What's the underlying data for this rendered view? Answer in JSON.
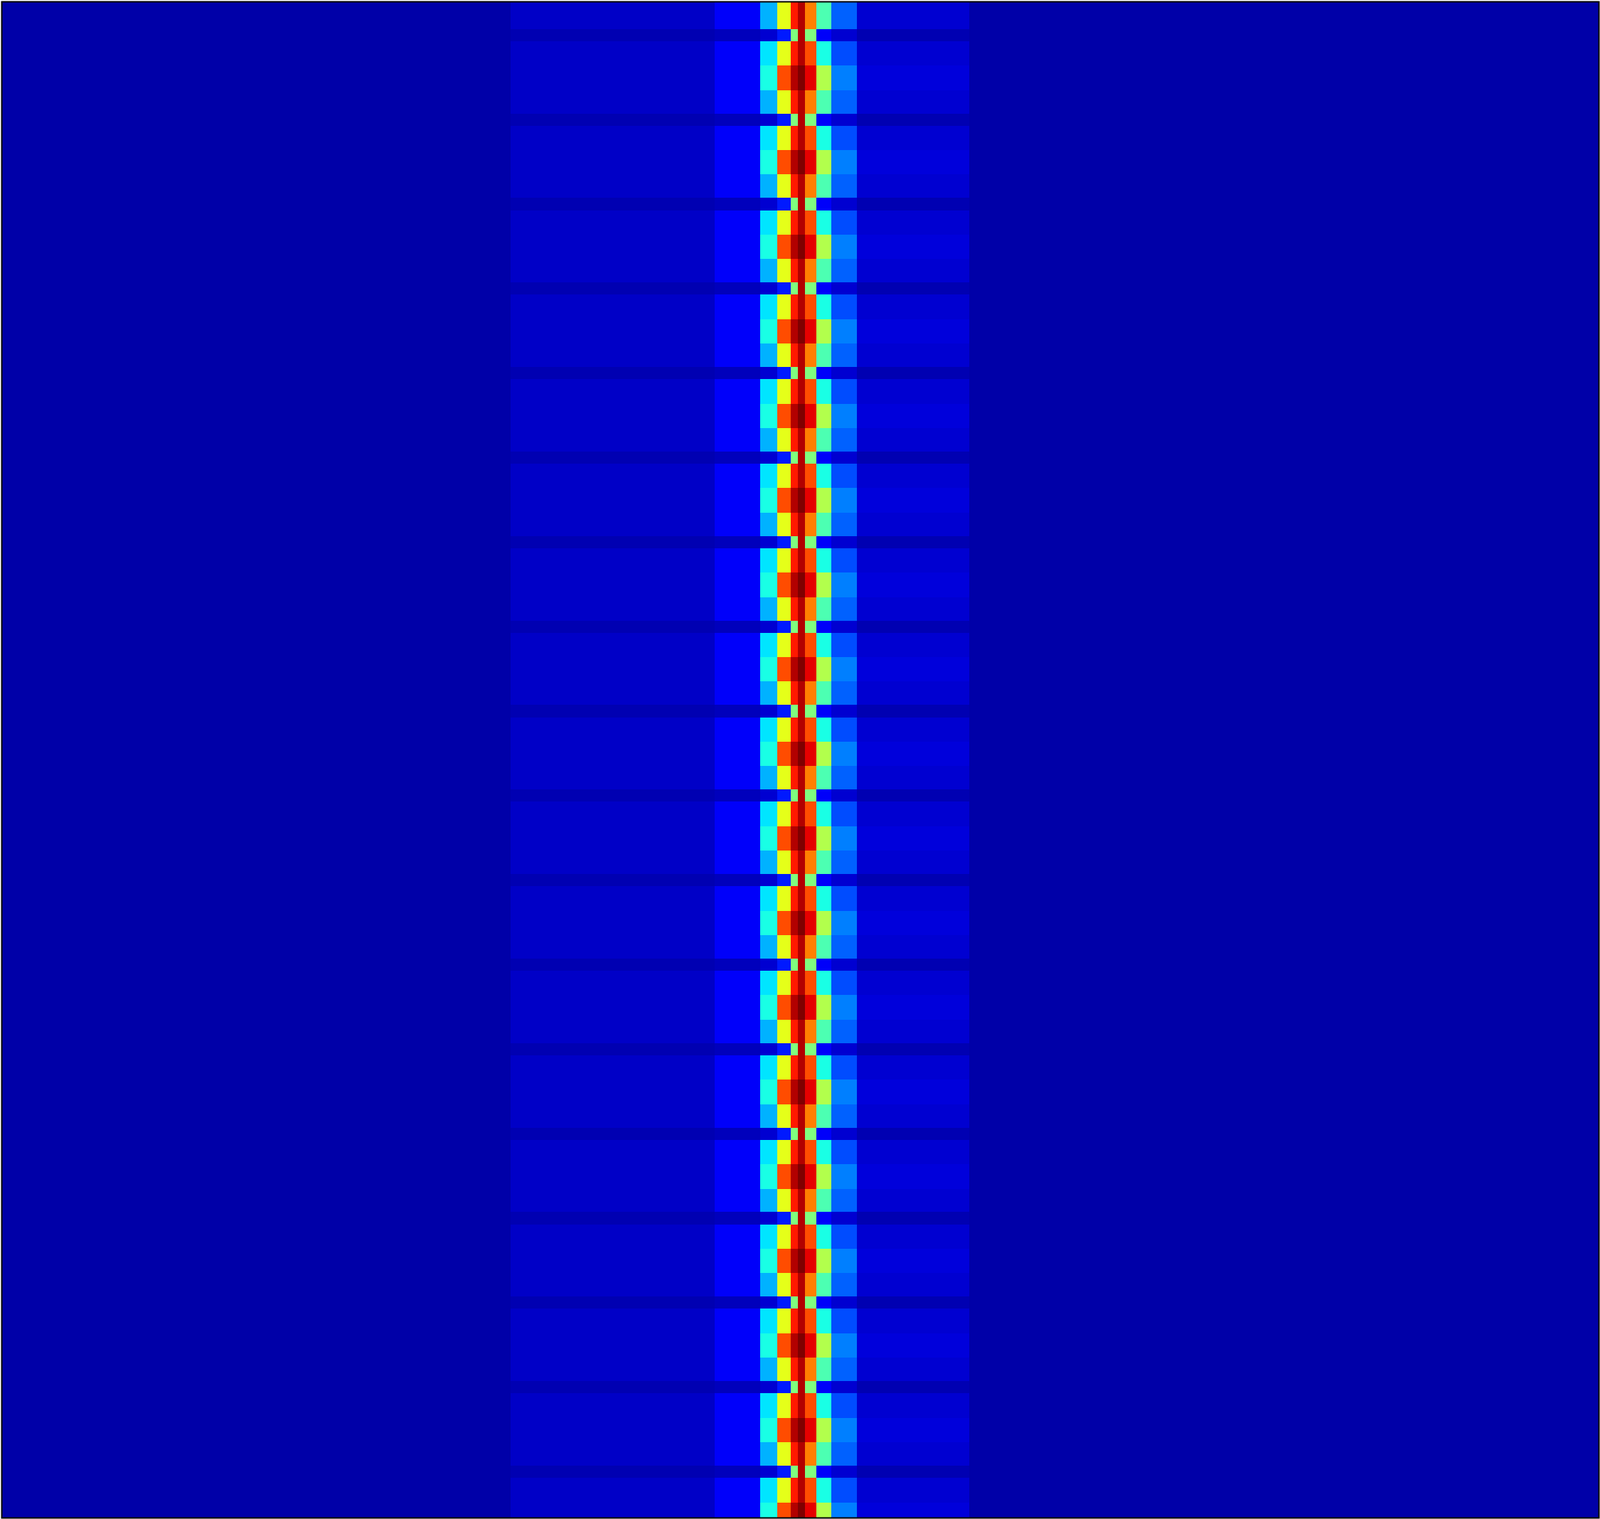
{
  "chart_data": {
    "type": "heatmap",
    "tick_labels": false,
    "xlim": [
      0,
      1568
    ],
    "ylim": [
      0,
      1489
    ],
    "clim": [
      0,
      1
    ],
    "colors": [
      "#00007f",
      "#0000ff",
      "#007fff",
      "#00ffff",
      "#7fff7f",
      "#ffff00",
      "#ff7f00",
      "#ff0000",
      "#7f0000"
    ],
    "x": [
      0,
      500,
      700,
      745,
      762,
      775,
      782,
      789,
      800,
      815,
      840,
      950,
      1568
    ],
    "y": [
      0,
      27,
      39,
      63,
      87,
      110,
      122,
      146,
      170,
      193,
      205,
      229,
      253,
      276,
      288,
      312,
      336,
      359,
      371,
      395,
      419,
      442,
      454,
      478,
      502,
      525,
      537,
      561,
      585,
      608,
      620,
      644,
      668,
      691,
      703,
      727,
      751,
      774,
      786,
      810,
      834,
      857,
      869,
      893,
      917,
      940,
      952,
      976,
      1000,
      1023,
      1035,
      1059,
      1083,
      1106,
      1118,
      1142,
      1166,
      1189,
      1201,
      1225,
      1249,
      1272,
      1284,
      1308,
      1332,
      1355,
      1367,
      1391,
      1415,
      1438,
      1450,
      1474,
      1489
    ],
    "values": [
      [
        0.04,
        0.07,
        0.12,
        0.3,
        0.6,
        0.85,
        0.95,
        0.75,
        0.45,
        0.22,
        0.08,
        0.04
      ],
      [
        0.04,
        0.05,
        0.06,
        0.08,
        0.15,
        0.5,
        0.95,
        0.5,
        0.12,
        0.08,
        0.05,
        0.04
      ],
      [
        0.04,
        0.07,
        0.12,
        0.35,
        0.6,
        0.85,
        0.95,
        0.8,
        0.4,
        0.2,
        0.08,
        0.04
      ],
      [
        0.04,
        0.07,
        0.12,
        0.4,
        0.8,
        0.95,
        1,
        0.9,
        0.55,
        0.25,
        0.09,
        0.04
      ],
      [
        0.04,
        0.07,
        0.12,
        0.3,
        0.6,
        0.85,
        0.95,
        0.75,
        0.45,
        0.22,
        0.08,
        0.04
      ],
      [
        0.04,
        0.05,
        0.06,
        0.08,
        0.15,
        0.5,
        0.95,
        0.5,
        0.12,
        0.08,
        0.05,
        0.04
      ],
      [
        0.04,
        0.07,
        0.12,
        0.35,
        0.6,
        0.85,
        0.95,
        0.8,
        0.4,
        0.2,
        0.08,
        0.04
      ],
      [
        0.04,
        0.07,
        0.12,
        0.4,
        0.8,
        0.95,
        1,
        0.9,
        0.55,
        0.25,
        0.09,
        0.04
      ],
      [
        0.04,
        0.07,
        0.12,
        0.3,
        0.6,
        0.85,
        0.95,
        0.75,
        0.45,
        0.22,
        0.08,
        0.04
      ],
      [
        0.04,
        0.05,
        0.06,
        0.08,
        0.15,
        0.5,
        0.95,
        0.5,
        0.12,
        0.08,
        0.05,
        0.04
      ],
      [
        0.04,
        0.07,
        0.12,
        0.35,
        0.6,
        0.85,
        0.95,
        0.8,
        0.4,
        0.2,
        0.08,
        0.04
      ],
      [
        0.04,
        0.07,
        0.12,
        0.4,
        0.8,
        0.95,
        1,
        0.9,
        0.55,
        0.25,
        0.09,
        0.04
      ],
      [
        0.04,
        0.07,
        0.12,
        0.3,
        0.6,
        0.85,
        0.95,
        0.75,
        0.45,
        0.22,
        0.08,
        0.04
      ],
      [
        0.04,
        0.05,
        0.06,
        0.08,
        0.15,
        0.5,
        0.95,
        0.5,
        0.12,
        0.08,
        0.05,
        0.04
      ],
      [
        0.04,
        0.07,
        0.12,
        0.35,
        0.6,
        0.85,
        0.95,
        0.8,
        0.4,
        0.2,
        0.08,
        0.04
      ],
      [
        0.04,
        0.07,
        0.12,
        0.4,
        0.8,
        0.95,
        1,
        0.9,
        0.55,
        0.25,
        0.09,
        0.04
      ],
      [
        0.04,
        0.07,
        0.12,
        0.3,
        0.6,
        0.85,
        0.95,
        0.75,
        0.45,
        0.22,
        0.08,
        0.04
      ],
      [
        0.04,
        0.05,
        0.06,
        0.08,
        0.15,
        0.5,
        0.95,
        0.5,
        0.12,
        0.08,
        0.05,
        0.04
      ],
      [
        0.04,
        0.07,
        0.12,
        0.35,
        0.6,
        0.85,
        0.95,
        0.8,
        0.4,
        0.2,
        0.08,
        0.04
      ],
      [
        0.04,
        0.07,
        0.12,
        0.4,
        0.8,
        0.95,
        1,
        0.9,
        0.55,
        0.25,
        0.09,
        0.04
      ],
      [
        0.04,
        0.07,
        0.12,
        0.3,
        0.6,
        0.85,
        0.95,
        0.75,
        0.45,
        0.22,
        0.08,
        0.04
      ],
      [
        0.04,
        0.05,
        0.06,
        0.08,
        0.15,
        0.5,
        0.95,
        0.5,
        0.12,
        0.08,
        0.05,
        0.04
      ],
      [
        0.04,
        0.07,
        0.12,
        0.35,
        0.6,
        0.85,
        0.95,
        0.8,
        0.4,
        0.2,
        0.08,
        0.04
      ],
      [
        0.04,
        0.07,
        0.12,
        0.4,
        0.8,
        0.95,
        1,
        0.9,
        0.55,
        0.25,
        0.09,
        0.04
      ],
      [
        0.04,
        0.07,
        0.12,
        0.3,
        0.6,
        0.85,
        0.95,
        0.75,
        0.45,
        0.22,
        0.08,
        0.04
      ],
      [
        0.04,
        0.05,
        0.06,
        0.08,
        0.15,
        0.5,
        0.95,
        0.5,
        0.12,
        0.08,
        0.05,
        0.04
      ],
      [
        0.04,
        0.07,
        0.12,
        0.35,
        0.6,
        0.85,
        0.95,
        0.8,
        0.4,
        0.2,
        0.08,
        0.04
      ],
      [
        0.04,
        0.07,
        0.12,
        0.4,
        0.8,
        0.95,
        1,
        0.9,
        0.55,
        0.25,
        0.09,
        0.04
      ],
      [
        0.04,
        0.07,
        0.12,
        0.3,
        0.6,
        0.85,
        0.95,
        0.75,
        0.45,
        0.22,
        0.08,
        0.04
      ],
      [
        0.04,
        0.05,
        0.06,
        0.08,
        0.15,
        0.5,
        0.95,
        0.5,
        0.12,
        0.08,
        0.05,
        0.04
      ],
      [
        0.04,
        0.07,
        0.12,
        0.35,
        0.6,
        0.85,
        0.95,
        0.8,
        0.4,
        0.2,
        0.08,
        0.04
      ],
      [
        0.04,
        0.07,
        0.12,
        0.4,
        0.8,
        0.95,
        1,
        0.9,
        0.55,
        0.25,
        0.09,
        0.04
      ],
      [
        0.04,
        0.07,
        0.12,
        0.3,
        0.6,
        0.85,
        0.95,
        0.75,
        0.45,
        0.22,
        0.08,
        0.04
      ],
      [
        0.04,
        0.05,
        0.06,
        0.08,
        0.15,
        0.5,
        0.95,
        0.5,
        0.12,
        0.08,
        0.05,
        0.04
      ],
      [
        0.04,
        0.07,
        0.12,
        0.35,
        0.6,
        0.85,
        0.95,
        0.8,
        0.4,
        0.2,
        0.08,
        0.04
      ],
      [
        0.04,
        0.07,
        0.12,
        0.4,
        0.8,
        0.95,
        1,
        0.9,
        0.55,
        0.25,
        0.09,
        0.04
      ],
      [
        0.04,
        0.07,
        0.12,
        0.3,
        0.6,
        0.85,
        0.95,
        0.75,
        0.45,
        0.22,
        0.08,
        0.04
      ],
      [
        0.04,
        0.05,
        0.06,
        0.08,
        0.15,
        0.5,
        0.95,
        0.5,
        0.12,
        0.08,
        0.05,
        0.04
      ],
      [
        0.04,
        0.07,
        0.12,
        0.35,
        0.6,
        0.85,
        0.95,
        0.8,
        0.4,
        0.2,
        0.08,
        0.04
      ],
      [
        0.04,
        0.07,
        0.12,
        0.4,
        0.8,
        0.95,
        1,
        0.9,
        0.55,
        0.25,
        0.09,
        0.04
      ],
      [
        0.04,
        0.07,
        0.12,
        0.3,
        0.6,
        0.85,
        0.95,
        0.75,
        0.45,
        0.22,
        0.08,
        0.04
      ],
      [
        0.04,
        0.05,
        0.06,
        0.08,
        0.15,
        0.5,
        0.95,
        0.5,
        0.12,
        0.08,
        0.05,
        0.04
      ],
      [
        0.04,
        0.07,
        0.12,
        0.35,
        0.6,
        0.85,
        0.95,
        0.8,
        0.4,
        0.2,
        0.08,
        0.04
      ],
      [
        0.04,
        0.07,
        0.12,
        0.4,
        0.8,
        0.95,
        1,
        0.9,
        0.55,
        0.25,
        0.09,
        0.04
      ],
      [
        0.04,
        0.07,
        0.12,
        0.3,
        0.6,
        0.85,
        0.95,
        0.75,
        0.45,
        0.22,
        0.08,
        0.04
      ],
      [
        0.04,
        0.05,
        0.06,
        0.08,
        0.15,
        0.5,
        0.95,
        0.5,
        0.12,
        0.08,
        0.05,
        0.04
      ],
      [
        0.04,
        0.07,
        0.12,
        0.35,
        0.6,
        0.85,
        0.95,
        0.8,
        0.4,
        0.2,
        0.08,
        0.04
      ],
      [
        0.04,
        0.07,
        0.12,
        0.4,
        0.8,
        0.95,
        1,
        0.9,
        0.55,
        0.25,
        0.09,
        0.04
      ],
      [
        0.04,
        0.07,
        0.12,
        0.3,
        0.6,
        0.85,
        0.95,
        0.75,
        0.45,
        0.22,
        0.08,
        0.04
      ],
      [
        0.04,
        0.05,
        0.06,
        0.08,
        0.15,
        0.5,
        0.95,
        0.5,
        0.12,
        0.08,
        0.05,
        0.04
      ],
      [
        0.04,
        0.07,
        0.12,
        0.35,
        0.6,
        0.85,
        0.95,
        0.8,
        0.4,
        0.2,
        0.08,
        0.04
      ],
      [
        0.04,
        0.07,
        0.12,
        0.4,
        0.8,
        0.95,
        1,
        0.9,
        0.55,
        0.25,
        0.09,
        0.04
      ],
      [
        0.04,
        0.07,
        0.12,
        0.3,
        0.6,
        0.85,
        0.95,
        0.75,
        0.45,
        0.22,
        0.08,
        0.04
      ],
      [
        0.04,
        0.05,
        0.06,
        0.08,
        0.15,
        0.5,
        0.95,
        0.5,
        0.12,
        0.08,
        0.05,
        0.04
      ],
      [
        0.04,
        0.07,
        0.12,
        0.35,
        0.6,
        0.85,
        0.95,
        0.8,
        0.4,
        0.2,
        0.08,
        0.04
      ],
      [
        0.04,
        0.07,
        0.12,
        0.4,
        0.8,
        0.95,
        1,
        0.9,
        0.55,
        0.25,
        0.09,
        0.04
      ],
      [
        0.04,
        0.07,
        0.12,
        0.3,
        0.6,
        0.85,
        0.95,
        0.75,
        0.45,
        0.22,
        0.08,
        0.04
      ],
      [
        0.04,
        0.05,
        0.06,
        0.08,
        0.15,
        0.5,
        0.95,
        0.5,
        0.12,
        0.08,
        0.05,
        0.04
      ],
      [
        0.04,
        0.07,
        0.12,
        0.35,
        0.6,
        0.85,
        0.95,
        0.8,
        0.4,
        0.2,
        0.08,
        0.04
      ],
      [
        0.04,
        0.07,
        0.12,
        0.4,
        0.8,
        0.95,
        1,
        0.9,
        0.55,
        0.25,
        0.09,
        0.04
      ],
      [
        0.04,
        0.07,
        0.12,
        0.3,
        0.6,
        0.85,
        0.95,
        0.75,
        0.45,
        0.22,
        0.08,
        0.04
      ],
      [
        0.04,
        0.05,
        0.06,
        0.08,
        0.15,
        0.5,
        0.95,
        0.5,
        0.12,
        0.08,
        0.05,
        0.04
      ],
      [
        0.04,
        0.07,
        0.12,
        0.35,
        0.6,
        0.85,
        0.95,
        0.8,
        0.4,
        0.2,
        0.08,
        0.04
      ],
      [
        0.04,
        0.07,
        0.12,
        0.4,
        0.8,
        0.95,
        1,
        0.9,
        0.55,
        0.25,
        0.09,
        0.04
      ],
      [
        0.04,
        0.07,
        0.12,
        0.3,
        0.6,
        0.85,
        0.95,
        0.75,
        0.45,
        0.22,
        0.08,
        0.04
      ],
      [
        0.04,
        0.05,
        0.06,
        0.08,
        0.15,
        0.5,
        0.95,
        0.5,
        0.12,
        0.08,
        0.05,
        0.04
      ],
      [
        0.04,
        0.07,
        0.12,
        0.35,
        0.6,
        0.85,
        0.95,
        0.8,
        0.4,
        0.2,
        0.08,
        0.04
      ],
      [
        0.04,
        0.07,
        0.12,
        0.4,
        0.8,
        0.95,
        1,
        0.9,
        0.55,
        0.25,
        0.09,
        0.04
      ],
      [
        0.04,
        0.07,
        0.12,
        0.3,
        0.6,
        0.85,
        0.95,
        0.75,
        0.45,
        0.22,
        0.08,
        0.04
      ],
      [
        0.04,
        0.05,
        0.06,
        0.08,
        0.15,
        0.5,
        0.95,
        0.5,
        0.12,
        0.08,
        0.05,
        0.04
      ],
      [
        0.04,
        0.07,
        0.12,
        0.35,
        0.6,
        0.85,
        0.95,
        0.8,
        0.4,
        0.2,
        0.08,
        0.04
      ],
      [
        0.04,
        0.07,
        0.12,
        0.4,
        0.8,
        0.95,
        1,
        0.9,
        0.55,
        0.25,
        0.09,
        0.04
      ]
    ]
  }
}
